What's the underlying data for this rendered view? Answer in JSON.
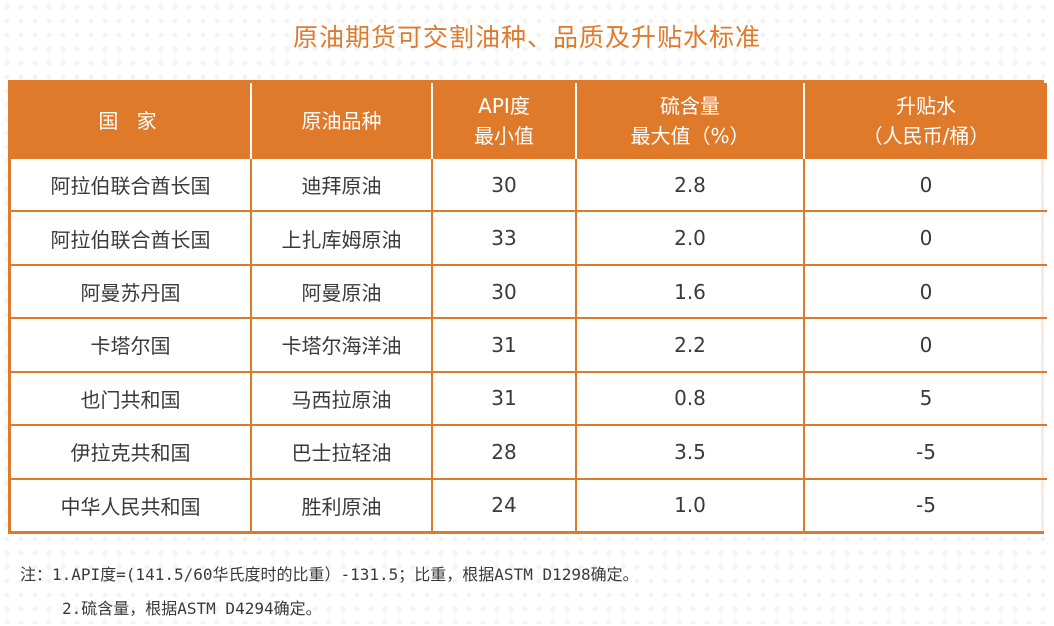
{
  "title": "原油期货可交割油种、品质及升贴水标准",
  "table": {
    "headers": [
      [
        "国  家"
      ],
      [
        "原油品种"
      ],
      [
        "API度",
        "最小值"
      ],
      [
        "硫含量",
        "最大值（%）"
      ],
      [
        "升贴水",
        "（人民币/桶）"
      ]
    ],
    "rows": [
      [
        "阿拉伯联合酋长国",
        "迪拜原油",
        "30",
        "2.8",
        "0"
      ],
      [
        "阿拉伯联合酋长国",
        "上扎库姆原油",
        "33",
        "2.0",
        "0"
      ],
      [
        "阿曼苏丹国",
        "阿曼原油",
        "30",
        "1.6",
        "0"
      ],
      [
        "卡塔尔国",
        "卡塔尔海洋油",
        "31",
        "2.2",
        "0"
      ],
      [
        "也门共和国",
        "马西拉原油",
        "31",
        "0.8",
        "5"
      ],
      [
        "伊拉克共和国",
        "巴士拉轻油",
        "28",
        "3.5",
        "-5"
      ],
      [
        "中华人民共和国",
        "胜利原油",
        "24",
        "1.0",
        "-5"
      ]
    ]
  },
  "notes": [
    "注：1.API度=(141.5/60华氏度时的比重）-131.5；比重，根据ASTM D1298确定。",
    "2.硫含量，根据ASTM D4294确定。"
  ],
  "colors": {
    "accent": "#e07a2b",
    "text": "#3a3a3a"
  }
}
